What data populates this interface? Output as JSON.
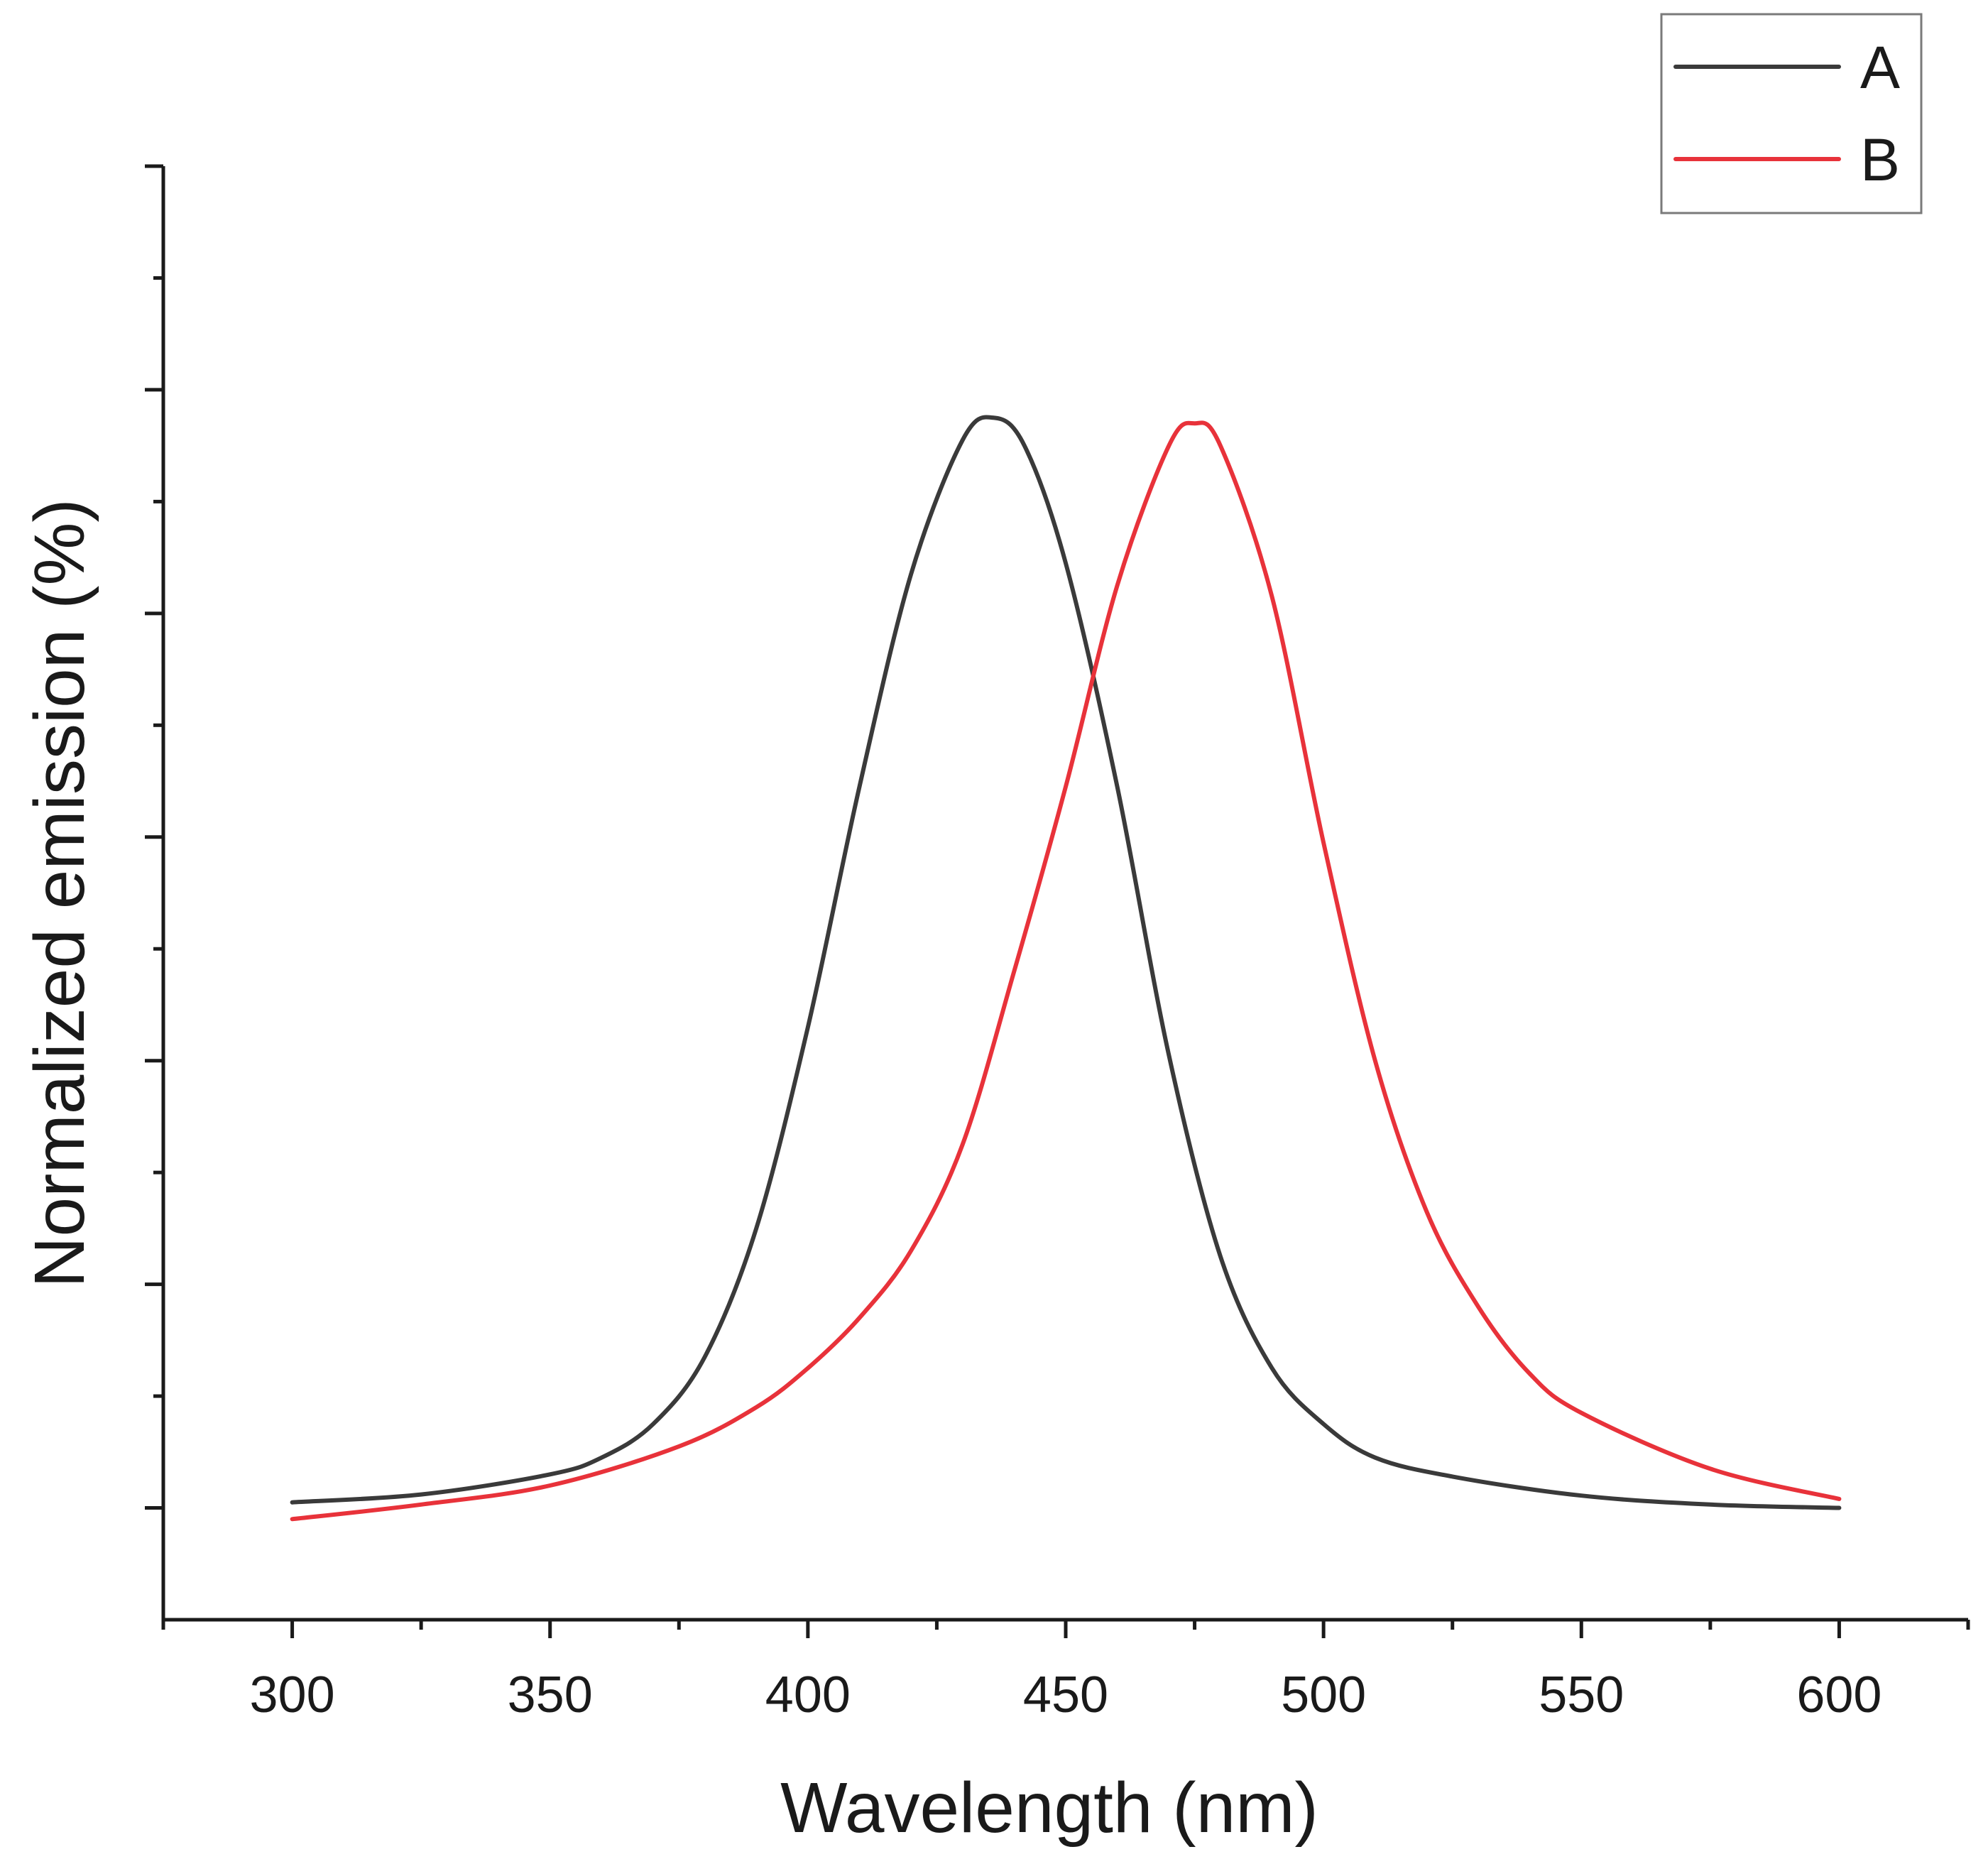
{
  "chart_data": {
    "type": "line",
    "title": "",
    "xlabel": "Wavelength (nm)",
    "ylabel": "Normalized emission (%)",
    "xlim": [
      275,
      625
    ],
    "ylim": [
      -5,
      125
    ],
    "x_ticks": [
      300,
      350,
      400,
      450,
      500,
      550,
      600
    ],
    "x_tick_labels": [
      "300",
      "350",
      "400",
      "450",
      "500",
      "550",
      "600"
    ],
    "y_major_ticks": [
      5,
      25,
      45,
      65,
      85,
      105,
      125
    ],
    "y_minor_ticks": [
      15,
      35,
      55,
      75,
      95,
      115
    ],
    "grid": false,
    "legend_position": "top-right",
    "series": [
      {
        "name": "A",
        "color": "#3a3a3a",
        "x": [
          300,
          325,
          350,
          360,
          370,
          380,
          390,
          400,
          410,
          420,
          430,
          436,
          442,
          450,
          460,
          470,
          480,
          490,
          500,
          510,
          525,
          550,
          575,
          600
        ],
        "y": [
          5.5,
          6.2,
          8.0,
          9.5,
          12.5,
          18.5,
          30.0,
          48.0,
          69.5,
          88.5,
          100.5,
          102.5,
          100.0,
          89.5,
          69.5,
          45.5,
          27.5,
          17.5,
          12.5,
          9.5,
          7.8,
          6.1,
          5.3,
          5.0
        ]
      },
      {
        "name": "B",
        "color": "#e8323a",
        "x": [
          300,
          325,
          350,
          375,
          390,
          400,
          410,
          420,
          430,
          440,
          450,
          460,
          470,
          475,
          480,
          490,
          500,
          510,
          520,
          530,
          540,
          550,
          575,
          600
        ],
        "y": [
          4.0,
          5.3,
          7.0,
          10.5,
          14.0,
          17.5,
          22.0,
          28.0,
          37.5,
          53.0,
          69.5,
          87.5,
          100.0,
          102.0,
          100.0,
          86.5,
          64.5,
          45.0,
          31.5,
          23.0,
          17.0,
          13.5,
          8.5,
          5.8
        ]
      }
    ]
  }
}
